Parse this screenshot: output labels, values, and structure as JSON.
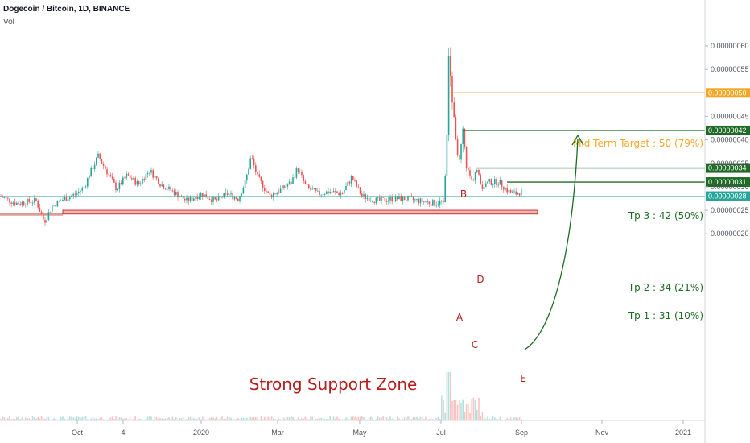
{
  "header": {
    "title": "Dogecoin / Bitcoin, 1D, BINANCE",
    "indicator": "Vol"
  },
  "colors": {
    "up": "#26a69a",
    "down": "#ef5350",
    "target": "#f5a623",
    "tp": "#1e6b25",
    "current": "#26a69a",
    "support_fill": "#f2b6b6",
    "support_border": "#c0392b",
    "label_red": "#b71c1c",
    "arrow": "#1e6b25"
  },
  "chart_data": {
    "type": "candlestick",
    "symbol": "DOGE/BTC",
    "y_axis": {
      "position": "right",
      "range": [
        1.85e-07,
        6.25e-07
      ],
      "ticks": [
        "0.00000020",
        "0.00000025",
        "0.00000030",
        "0.00000035",
        "0.00000040",
        "0.00000045",
        "0.00000055",
        "0.00000060"
      ]
    },
    "x_axis": {
      "ticks": [
        "Oct",
        "4",
        "2020",
        "Mar",
        "May",
        "Jul",
        "Sep",
        "Nov",
        "2021"
      ]
    },
    "price_series": [
      [
        0,
        28
      ],
      [
        20,
        26.5
      ],
      [
        45,
        27
      ],
      [
        55,
        22.5
      ],
      [
        65,
        26
      ],
      [
        80,
        27.5
      ],
      [
        95,
        28.5
      ],
      [
        105,
        30
      ],
      [
        112,
        33
      ],
      [
        122,
        36.5
      ],
      [
        132,
        33.5
      ],
      [
        145,
        29.5
      ],
      [
        158,
        32.5
      ],
      [
        172,
        30.5
      ],
      [
        186,
        33.5
      ],
      [
        200,
        30.5
      ],
      [
        215,
        29
      ],
      [
        232,
        27
      ],
      [
        250,
        28.5
      ],
      [
        268,
        27
      ],
      [
        282,
        28.5
      ],
      [
        296,
        27.5
      ],
      [
        305,
        31
      ],
      [
        312,
        36.5
      ],
      [
        320,
        32
      ],
      [
        335,
        28
      ],
      [
        350,
        29.5
      ],
      [
        362,
        31
      ],
      [
        370,
        34
      ],
      [
        380,
        30
      ],
      [
        395,
        28.5
      ],
      [
        410,
        29
      ],
      [
        425,
        28.5
      ],
      [
        437,
        32
      ],
      [
        450,
        28
      ],
      [
        470,
        27
      ],
      [
        490,
        27.5
      ],
      [
        505,
        27.5
      ],
      [
        520,
        27
      ],
      [
        540,
        26.5
      ],
      [
        552,
        27
      ],
      [
        556,
        45
      ],
      [
        558,
        60
      ],
      [
        562,
        48
      ],
      [
        566,
        40
      ],
      [
        571,
        35
      ],
      [
        575,
        42
      ],
      [
        580,
        34
      ],
      [
        587,
        31
      ],
      [
        592,
        34
      ],
      [
        598,
        30
      ],
      [
        608,
        31
      ],
      [
        620,
        31
      ],
      [
        632,
        29
      ],
      [
        640,
        28.5
      ],
      [
        648,
        29
      ]
    ],
    "price_unit": "0.00000001",
    "levels": [
      {
        "label": "0.00000050",
        "value": 5e-07,
        "kind": "target"
      },
      {
        "label": "0.00000042",
        "value": 4.2e-07,
        "kind": "tp"
      },
      {
        "label": "0.00000034",
        "value": 3.4e-07,
        "kind": "tp"
      },
      {
        "label": "0.00000031",
        "value": 3.1e-07,
        "kind": "tp"
      },
      {
        "label": "0.00000028",
        "value": 2.8e-07,
        "kind": "current"
      }
    ],
    "annotations": {
      "target": "Mid Term Target : 50 (79%)",
      "tp3": "Tp 3 : 42 (50%)",
      "tp2": "Tp 2 : 34 (21%)",
      "tp1": "Tp 1 : 31 (10%)",
      "support": "Strong Support Zone",
      "wave_points": [
        "A",
        "B",
        "C",
        "D",
        "E"
      ]
    },
    "support_zone": [
      2.42e-07,
      2.5e-07
    ]
  }
}
